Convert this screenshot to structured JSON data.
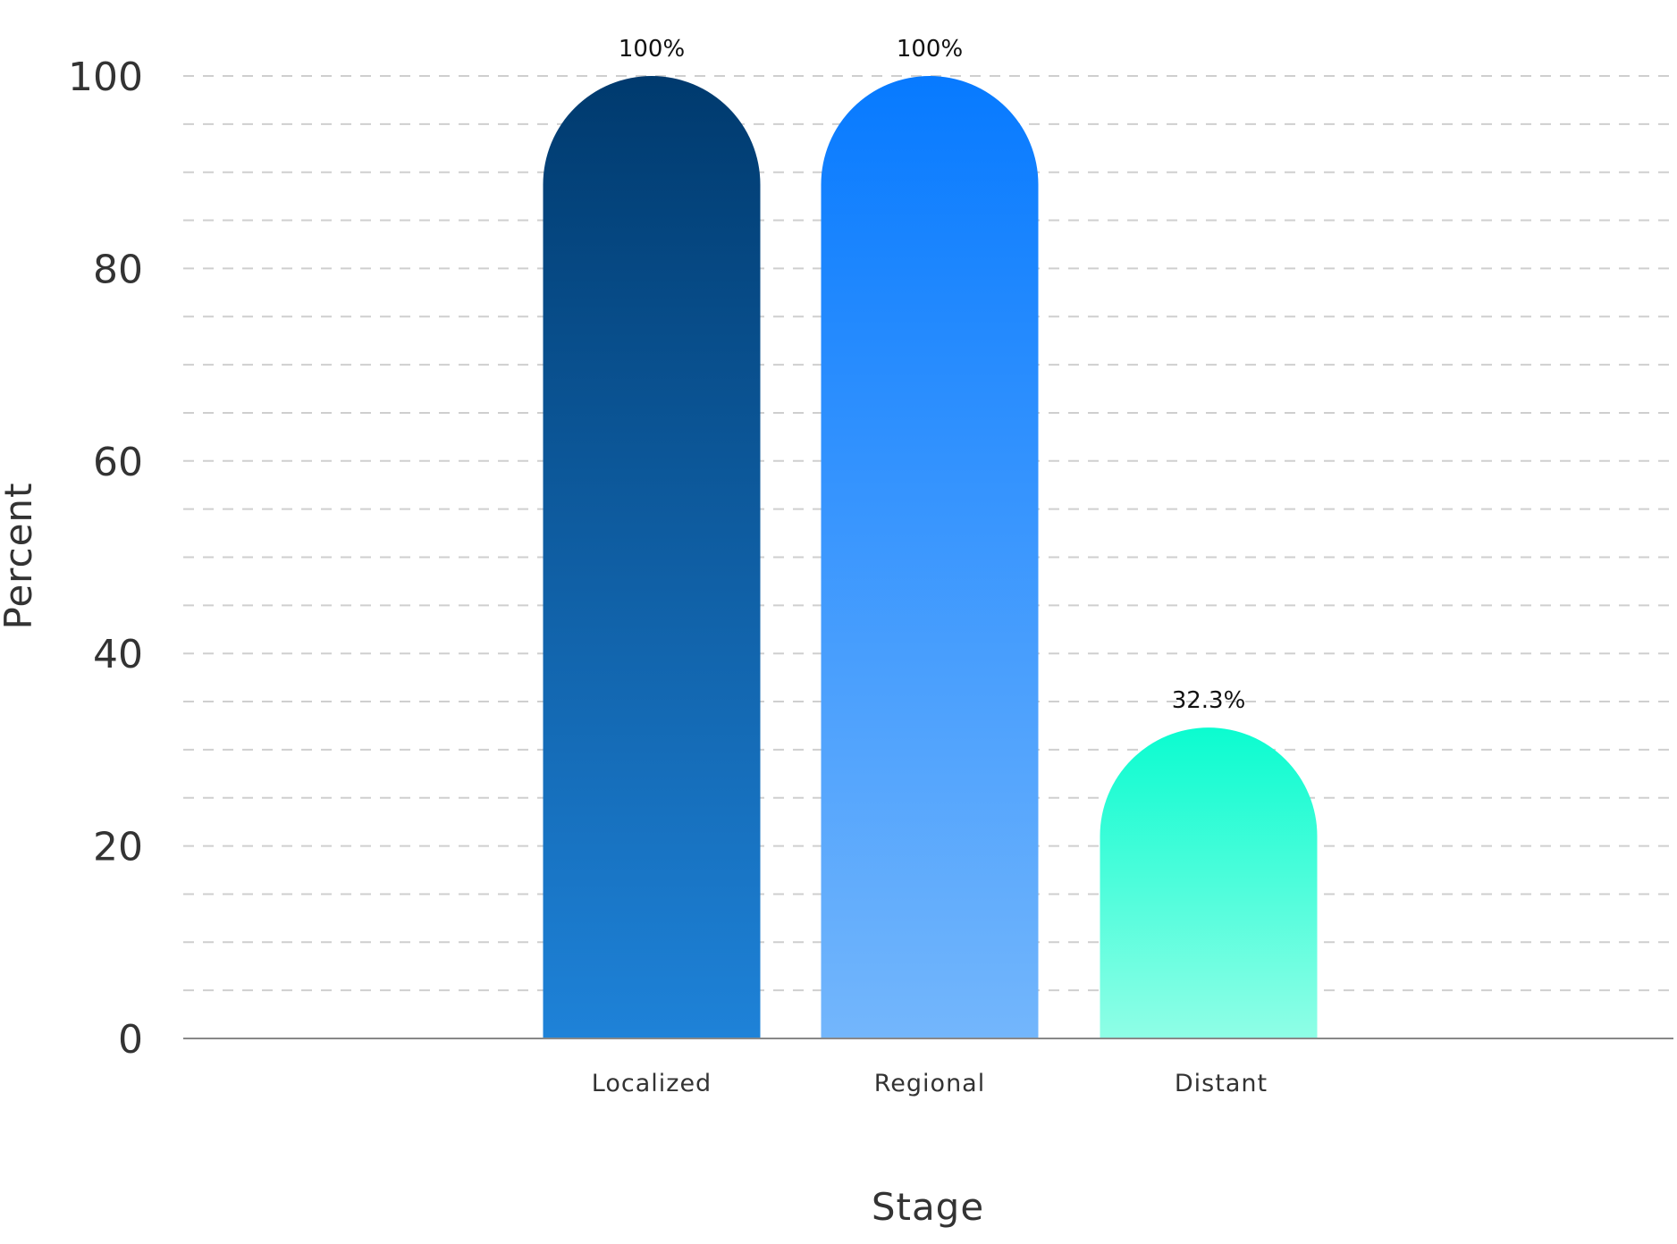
{
  "chart_data": {
    "type": "bar",
    "categories": [
      "Localized",
      "Regional",
      "Distant"
    ],
    "values": [
      100,
      100,
      32.3
    ],
    "data_labels": [
      "100%",
      "100%",
      "32.3%"
    ],
    "title": "",
    "xlabel": "Stage",
    "ylabel": "Percent",
    "ylim": [
      0,
      100
    ],
    "yticks": [
      0,
      20,
      40,
      60,
      80,
      100
    ],
    "grid": true,
    "legend": "none",
    "bar_style": "rounded-top",
    "colors": [
      {
        "top": "#003a6e",
        "bottom": "#1e82d8"
      },
      {
        "top": "#077aff",
        "bottom": "#73b6fc"
      },
      {
        "top": "#0bfcd0",
        "bottom": "#8ffee6"
      }
    ]
  }
}
